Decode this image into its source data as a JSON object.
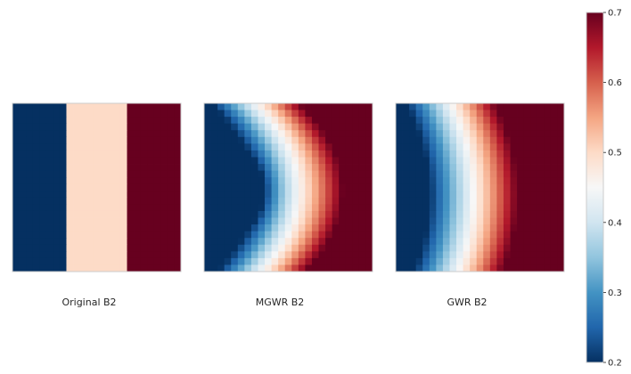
{
  "figure": {
    "panel_titles": [
      "Original B2",
      "MGWR B2",
      "GWR B2"
    ]
  },
  "chart_data": [
    {
      "type": "heatmap",
      "title": "Original B2",
      "grid_size": 25,
      "pattern": "three vertical bands: low (left), mid (center), high (right)",
      "band_values": [
        0.2,
        0.5,
        0.7
      ],
      "vmin": 0.2,
      "vmax": 0.7,
      "colormap": "RdBu_r"
    },
    {
      "type": "heatmap",
      "title": "MGWR B2",
      "grid_size": 25,
      "pattern": "smooth gradient, low on left rising to high on right, neutral boundary bowed to the right in the middle rows",
      "vmin": 0.2,
      "vmax": 0.7,
      "colormap": "RdBu_r"
    },
    {
      "type": "heatmap",
      "title": "GWR B2",
      "grid_size": 25,
      "pattern": "smooth gradient, low on left rising to high on right, neutral boundary near center, slightly bowed right in the middle rows",
      "vmin": 0.2,
      "vmax": 0.7,
      "colormap": "RdBu_r"
    }
  ],
  "colorbar": {
    "vmin": 0.2,
    "vmax": 0.7,
    "ticks": [
      "0.2",
      "0.3",
      "0.4",
      "0.5",
      "0.6",
      "0.7"
    ],
    "colormap": "RdBu_r"
  }
}
